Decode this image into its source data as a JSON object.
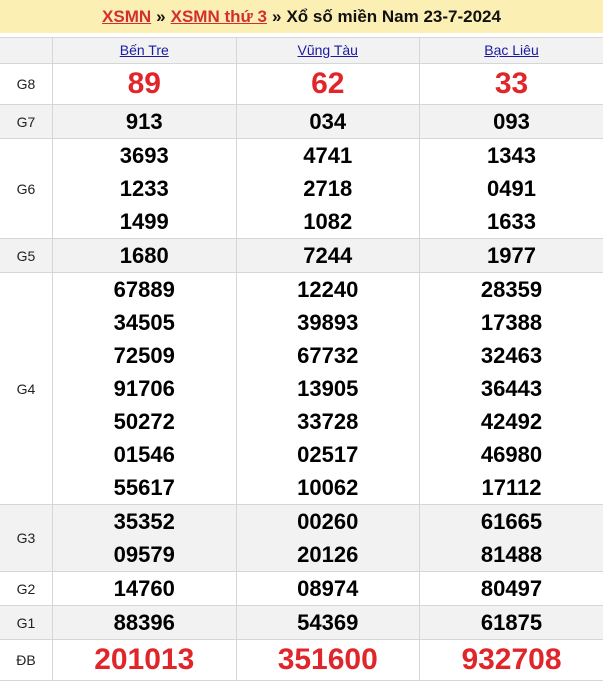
{
  "breadcrumb": {
    "link1": "XSMN",
    "sep1": "»",
    "link2": "XSMN thứ 3",
    "sep2": "»",
    "title": "Xổ số miền Nam 23-7-2024"
  },
  "provinces": [
    "Bến Tre",
    "Vũng Tàu",
    "Bạc Liêu"
  ],
  "colors": {
    "red": "#e0262b",
    "header_bg": "#fcefb4",
    "link": "#1a1aa0"
  },
  "prizes": [
    {
      "label": "G8",
      "values": [
        [
          "89"
        ],
        [
          "62"
        ],
        [
          "33"
        ]
      ]
    },
    {
      "label": "G7",
      "values": [
        [
          "913"
        ],
        [
          "034"
        ],
        [
          "093"
        ]
      ]
    },
    {
      "label": "G6",
      "values": [
        [
          "3693",
          "1233",
          "1499"
        ],
        [
          "4741",
          "2718",
          "1082"
        ],
        [
          "1343",
          "0491",
          "1633"
        ]
      ]
    },
    {
      "label": "G5",
      "values": [
        [
          "1680"
        ],
        [
          "7244"
        ],
        [
          "1977"
        ]
      ]
    },
    {
      "label": "G4",
      "values": [
        [
          "67889",
          "34505",
          "72509",
          "91706",
          "50272",
          "01546",
          "55617"
        ],
        [
          "12240",
          "39893",
          "67732",
          "13905",
          "33728",
          "02517",
          "10062"
        ],
        [
          "28359",
          "17388",
          "32463",
          "36443",
          "42492",
          "46980",
          "17112"
        ]
      ]
    },
    {
      "label": "G3",
      "values": [
        [
          "35352",
          "09579"
        ],
        [
          "00260",
          "20126"
        ],
        [
          "61665",
          "81488"
        ]
      ]
    },
    {
      "label": "G2",
      "values": [
        [
          "14760"
        ],
        [
          "08974"
        ],
        [
          "80497"
        ]
      ]
    },
    {
      "label": "G1",
      "values": [
        [
          "88396"
        ],
        [
          "54369"
        ],
        [
          "61875"
        ]
      ]
    },
    {
      "label": "ĐB",
      "values": [
        [
          "201013"
        ],
        [
          "351600"
        ],
        [
          "932708"
        ]
      ]
    }
  ]
}
